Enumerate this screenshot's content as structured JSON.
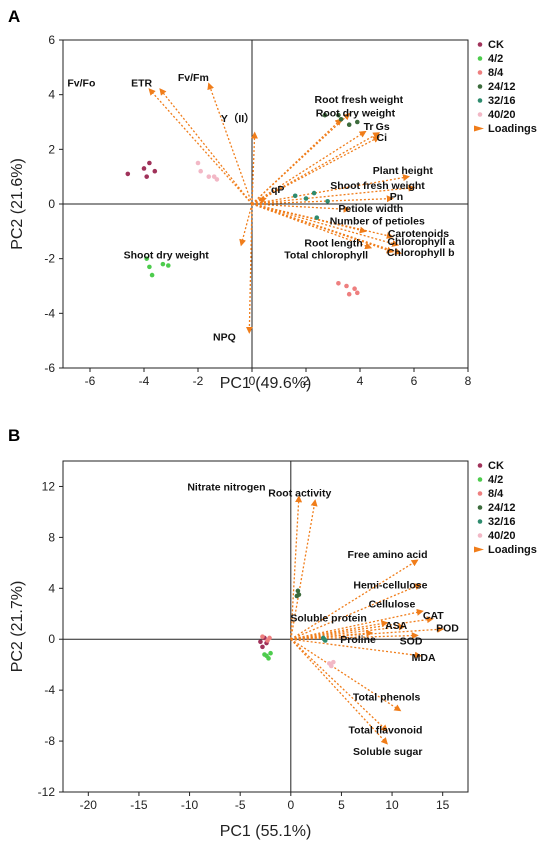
{
  "chart_data": [
    {
      "panel": "A",
      "type": "scatter",
      "xlabel": "PC1 (49.6%)",
      "ylabel": "PC2 (21.6%)",
      "xlim": [
        -7,
        8
      ],
      "ylim": [
        -6,
        6
      ],
      "xticks": [
        -6,
        -4,
        -2,
        0,
        2,
        4,
        6,
        8
      ],
      "yticks": [
        -6,
        -4,
        -2,
        0,
        2,
        4,
        6
      ],
      "grid": false,
      "legend_position": "right",
      "series": [
        {
          "name": "CK",
          "color": "#a0325a",
          "points": [
            [
              -4.6,
              1.1
            ],
            [
              -4.0,
              1.3
            ],
            [
              -3.8,
              1.5
            ],
            [
              -3.9,
              1.0
            ],
            [
              -3.6,
              1.2
            ]
          ]
        },
        {
          "name": "4/2",
          "color": "#4dcc4d",
          "points": [
            [
              -3.9,
              -2.0
            ],
            [
              -3.8,
              -2.3
            ],
            [
              -3.7,
              -2.6
            ],
            [
              -3.3,
              -2.2
            ],
            [
              -3.1,
              -2.25
            ]
          ]
        },
        {
          "name": "8/4",
          "color": "#ee7f7f",
          "points": [
            [
              3.2,
              -2.9
            ],
            [
              3.5,
              -3.0
            ],
            [
              3.6,
              -3.3
            ],
            [
              3.8,
              -3.1
            ],
            [
              3.9,
              -3.25
            ]
          ]
        },
        {
          "name": "24/12",
          "color": "#3c6b3c",
          "points": [
            [
              2.7,
              3.25
            ],
            [
              3.2,
              3.25
            ],
            [
              3.9,
              3.0
            ],
            [
              3.3,
              3.1
            ],
            [
              3.6,
              2.9
            ]
          ]
        },
        {
          "name": "32/16",
          "color": "#2e8b6e",
          "points": [
            [
              1.6,
              0.3
            ],
            [
              2.0,
              0.2
            ],
            [
              2.3,
              0.4
            ],
            [
              2.4,
              -0.5
            ],
            [
              2.8,
              0.1
            ]
          ]
        },
        {
          "name": "40/20",
          "color": "#f2b8c6",
          "points": [
            [
              -2.0,
              1.5
            ],
            [
              -1.9,
              1.2
            ],
            [
              -1.6,
              1.0
            ],
            [
              -1.4,
              1.0
            ],
            [
              -1.3,
              0.9
            ]
          ]
        }
      ],
      "loadings_label": "Loadings",
      "loadings_color": "#f07d1a",
      "loadings": [
        {
          "label": "Fv/Fo",
          "x": -3.8,
          "y": 4.2,
          "lx": -5.8,
          "ly": 4.3
        },
        {
          "label": "ETR",
          "x": -3.4,
          "y": 4.2,
          "lx": -3.7,
          "ly": 4.3
        },
        {
          "label": "Fv/Fm",
          "x": -1.6,
          "y": 4.4,
          "lx": -1.6,
          "ly": 4.5
        },
        {
          "label": "Y（II）",
          "x": 0.1,
          "y": 2.6,
          "lx": 0.1,
          "ly": 3.0
        },
        {
          "label": "qP",
          "x": 0.5,
          "y": 0.2,
          "lx": 1.2,
          "ly": 0.4
        },
        {
          "label": "Root fresh weight",
          "x": 3.6,
          "y": 3.3,
          "lx": 5.6,
          "ly": 3.7
        },
        {
          "label": "Root dry weight",
          "x": 3.3,
          "y": 3.1,
          "lx": 5.3,
          "ly": 3.2
        },
        {
          "label": "Tr",
          "x": 4.2,
          "y": 2.65,
          "lx": 4.5,
          "ly": 2.7
        },
        {
          "label": "Gs",
          "x": 4.7,
          "y": 2.6,
          "lx": 5.1,
          "ly": 2.7
        },
        {
          "label": "Ci",
          "x": 4.7,
          "y": 2.45,
          "lx": 5.0,
          "ly": 2.3
        },
        {
          "label": "Plant height",
          "x": 5.8,
          "y": 1.0,
          "lx": 6.7,
          "ly": 1.1
        },
        {
          "label": "Shoot fresh weight",
          "x": 6.0,
          "y": 0.6,
          "lx": 6.4,
          "ly": 0.55
        },
        {
          "label": "Pn",
          "x": 5.2,
          "y": 0.2,
          "lx": 5.6,
          "ly": 0.15
        },
        {
          "label": "Petiole width",
          "x": 3.6,
          "y": -0.2,
          "lx": 5.6,
          "ly": -0.3
        },
        {
          "label": "Number of petioles",
          "x": 4.2,
          "y": -1.0,
          "lx": 6.4,
          "ly": -0.75
        },
        {
          "label": "Carotenoids",
          "x": 5.2,
          "y": -1.2,
          "lx": 7.3,
          "ly": -1.2
        },
        {
          "label": "Chlorophyll a",
          "x": 5.4,
          "y": -1.5,
          "lx": 7.5,
          "ly": -1.5
        },
        {
          "label": "Chlorophyll b",
          "x": 5.5,
          "y": -1.8,
          "lx": 7.5,
          "ly": -1.9
        },
        {
          "label": "Root length",
          "x": 4.4,
          "y": -1.6,
          "lx": 4.1,
          "ly": -1.55
        },
        {
          "label": "Total chlorophyll",
          "x": 5.2,
          "y": -1.75,
          "lx": 4.3,
          "ly": -2.0
        },
        {
          "label": "Shoot dry weight",
          "x": -0.4,
          "y": -1.5,
          "lx": -1.6,
          "ly": -2.0
        },
        {
          "label": "NPQ",
          "x": -0.1,
          "y": -4.7,
          "lx": -0.6,
          "ly": -5.0
        }
      ]
    },
    {
      "panel": "B",
      "type": "scatter",
      "xlabel": "PC1 (55.1%)",
      "ylabel": "PC2 (21.7%)",
      "xlim": [
        -22.5,
        17.5
      ],
      "ylim": [
        -12,
        14
      ],
      "xticks": [
        -20,
        -15,
        -10,
        -5,
        0,
        5,
        10,
        15
      ],
      "yticks": [
        -12,
        -8,
        -4,
        0,
        4,
        8,
        12
      ],
      "grid": false,
      "legend_position": "right",
      "series": [
        {
          "name": "CK",
          "color": "#a0325a",
          "points": [
            [
              -3.0,
              -0.2
            ],
            [
              -2.8,
              -0.6
            ],
            [
              -2.4,
              -0.3
            ],
            [
              -2.6,
              0.1
            ]
          ]
        },
        {
          "name": "4/2",
          "color": "#4dcc4d",
          "points": [
            [
              -2.6,
              -1.2
            ],
            [
              -2.2,
              -1.5
            ],
            [
              -2.4,
              -1.3
            ],
            [
              -2.0,
              -1.1
            ]
          ]
        },
        {
          "name": "8/4",
          "color": "#ee7f7f",
          "points": [
            [
              -2.8,
              0.2
            ],
            [
              -2.3,
              -0.1
            ],
            [
              -2.1,
              0.1
            ]
          ]
        },
        {
          "name": "24/12",
          "color": "#3c6b3c",
          "points": [
            [
              0.7,
              3.8
            ],
            [
              0.6,
              3.4
            ],
            [
              0.8,
              3.5
            ]
          ]
        },
        {
          "name": "32/16",
          "color": "#2e8b6e",
          "points": [
            [
              3.2,
              0.1
            ],
            [
              3.4,
              -0.1
            ],
            [
              3.3,
              0.0
            ]
          ]
        },
        {
          "name": "40/20",
          "color": "#f2b8c6",
          "points": [
            [
              3.8,
              -1.9
            ],
            [
              4.0,
              -2.1
            ],
            [
              4.2,
              -1.8
            ]
          ]
        }
      ],
      "loadings_label": "Loadings",
      "loadings_color": "#f07d1a",
      "loadings": [
        {
          "label": "Nitrate nitrogen",
          "x": 0.8,
          "y": 11.2,
          "lx": -2.5,
          "ly": 11.7
        },
        {
          "label": "Root activity",
          "x": 2.4,
          "y": 10.9,
          "lx": 4.0,
          "ly": 11.2
        },
        {
          "label": "Free amino acid",
          "x": 12.5,
          "y": 6.2,
          "lx": 13.5,
          "ly": 6.4
        },
        {
          "label": "Hemi-cellulose",
          "x": 12.8,
          "y": 4.3,
          "lx": 13.5,
          "ly": 4.0
        },
        {
          "label": "Cellulose",
          "x": 13.0,
          "y": 2.2,
          "lx": 12.3,
          "ly": 2.5
        },
        {
          "label": "CAT",
          "x": 14.0,
          "y": 1.6,
          "lx": 15.1,
          "ly": 1.6
        },
        {
          "label": "POD",
          "x": 15.0,
          "y": 0.8,
          "lx": 16.6,
          "ly": 0.6
        },
        {
          "label": "ASA",
          "x": 11.2,
          "y": 1.0,
          "lx": 11.5,
          "ly": 0.8
        },
        {
          "label": "Soluble protein",
          "x": 9.5,
          "y": 1.3,
          "lx": 7.5,
          "ly": 1.4
        },
        {
          "label": "SOD",
          "x": 12.5,
          "y": 0.3,
          "lx": 13.0,
          "ly": -0.4
        },
        {
          "label": "Proline",
          "x": 8.0,
          "y": 0.5,
          "lx": 8.4,
          "ly": -0.3
        },
        {
          "label": "MDA",
          "x": 12.8,
          "y": -1.3,
          "lx": 14.3,
          "ly": -1.7
        },
        {
          "label": "Total phenols",
          "x": 10.8,
          "y": -5.6,
          "lx": 12.8,
          "ly": -4.8
        },
        {
          "label": "Total flavonoid",
          "x": 9.5,
          "y": -7.2,
          "lx": 13.0,
          "ly": -7.4
        },
        {
          "label": "Soluble sugar",
          "x": 9.5,
          "y": -8.2,
          "lx": 13.0,
          "ly": -9.1
        }
      ]
    }
  ],
  "panels": {
    "a": {
      "letter": "A"
    },
    "b": {
      "letter": "B"
    }
  }
}
